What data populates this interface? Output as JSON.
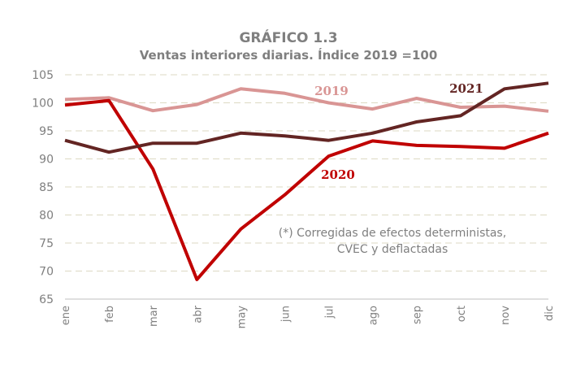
{
  "chart_data": {
    "type": "line",
    "title": "GRÁFICO 1.3",
    "subtitle": "Ventas interiores diarias. Índice  2019  =100",
    "xlabel": "",
    "ylabel": "",
    "categories": [
      "ene",
      "feb",
      "mar",
      "abr",
      "may",
      "jun",
      "jul",
      "ago",
      "sep",
      "oct",
      "nov",
      "dic"
    ],
    "ylim": [
      65,
      105
    ],
    "yticks": [
      65,
      70,
      75,
      80,
      85,
      90,
      95,
      100,
      105
    ],
    "grid": "horizontal-dashed",
    "legend": "inline-labels",
    "series": [
      {
        "name": "2019",
        "color": "#d99594",
        "values": [
          100.6,
          100.9,
          98.6,
          99.7,
          102.5,
          101.7,
          100.0,
          98.9,
          100.8,
          99.2,
          99.4,
          98.5
        ]
      },
      {
        "name": "2020",
        "color": "#c00000",
        "values": [
          99.6,
          100.4,
          88.2,
          68.5,
          77.5,
          83.6,
          90.5,
          93.2,
          92.4,
          92.2,
          91.9,
          94.6
        ]
      },
      {
        "name": "2021",
        "color": "#632523",
        "values": [
          93.3,
          91.2,
          92.8,
          92.8,
          94.6,
          94.1,
          93.3,
          94.6,
          96.6,
          97.7,
          102.5,
          103.5
        ]
      }
    ],
    "annotations": [
      "(*) Corregidas de efectos deterministas,",
      "CVEC y deflactadas"
    ]
  }
}
